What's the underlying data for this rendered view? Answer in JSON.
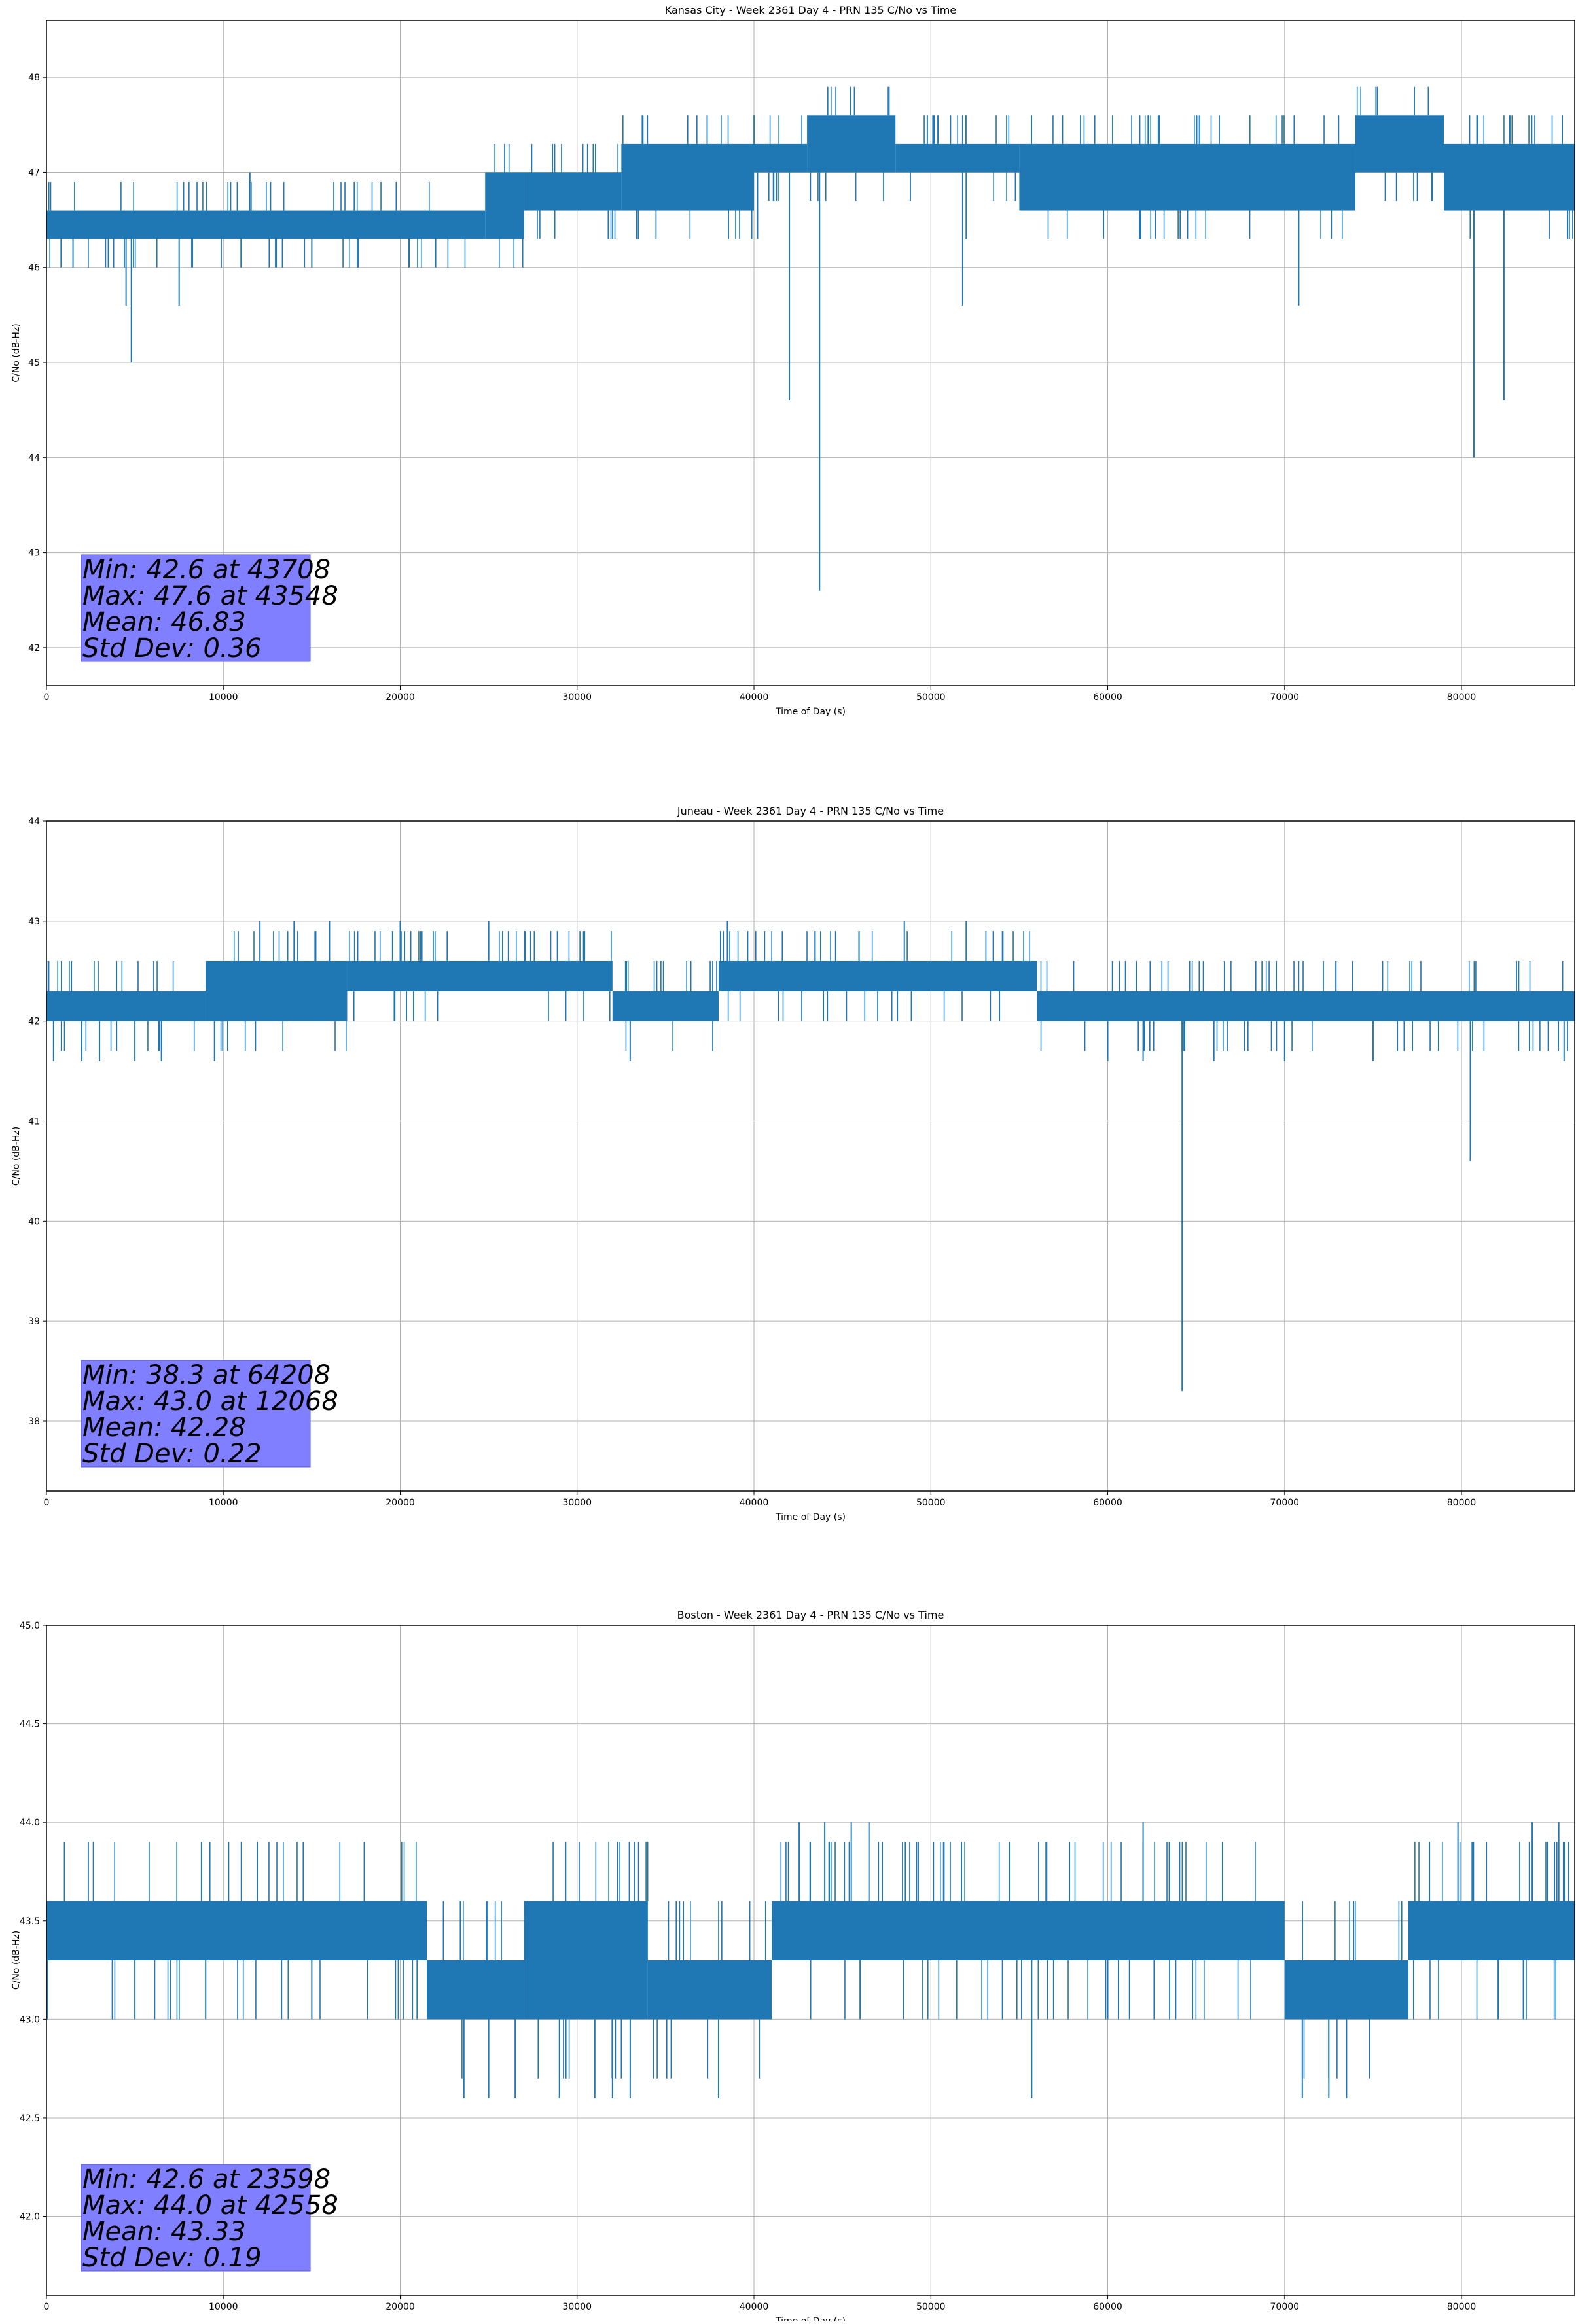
{
  "chart_data": [
    {
      "type": "line",
      "title": "Kansas City - Week 2361 Day 4 - PRN 135 C/No vs Time",
      "xlabel": "Time of Day (s)",
      "ylabel": "C/No (dB-Hz)",
      "xlim": [
        0,
        86400
      ],
      "ylim": [
        41.6,
        48.6
      ],
      "xticks": [
        0,
        10000,
        20000,
        30000,
        40000,
        50000,
        60000,
        70000,
        80000
      ],
      "yticks": [
        42,
        43,
        44,
        45,
        46,
        47,
        48
      ],
      "ytick_labels": [
        "42",
        "43",
        "44",
        "45",
        "46",
        "47",
        "48"
      ],
      "grid": true,
      "series_color": "#1f77b4",
      "segments": [
        {
          "x": [
            0,
            24800
          ],
          "low": 46.3,
          "high": 46.6
        },
        {
          "x": [
            24800,
            27000
          ],
          "low": 46.3,
          "high": 47.0
        },
        {
          "x": [
            27000,
            32500
          ],
          "low": 46.6,
          "high": 47.0
        },
        {
          "x": [
            32500,
            40000
          ],
          "low": 46.6,
          "high": 47.3
        },
        {
          "x": [
            40000,
            43000
          ],
          "low": 47.0,
          "high": 47.3
        },
        {
          "x": [
            43000,
            48000
          ],
          "low": 47.0,
          "high": 47.6
        },
        {
          "x": [
            48000,
            55000
          ],
          "low": 47.0,
          "high": 47.3
        },
        {
          "x": [
            55000,
            74000
          ],
          "low": 46.6,
          "high": 47.3
        },
        {
          "x": [
            74000,
            79000
          ],
          "low": 47.0,
          "high": 47.6
        },
        {
          "x": [
            79000,
            86400
          ],
          "low": 46.6,
          "high": 47.3
        }
      ],
      "dips": [
        {
          "x": 1500,
          "y": 46.0
        },
        {
          "x": 3500,
          "y": 46.0
        },
        {
          "x": 4500,
          "y": 45.6
        },
        {
          "x": 4800,
          "y": 45.0
        },
        {
          "x": 7500,
          "y": 45.6
        },
        {
          "x": 11000,
          "y": 46.0
        },
        {
          "x": 15000,
          "y": 46.0
        },
        {
          "x": 20500,
          "y": 46.0
        },
        {
          "x": 22000,
          "y": 46.0
        },
        {
          "x": 40200,
          "y": 46.3
        },
        {
          "x": 42000,
          "y": 44.6
        },
        {
          "x": 43708,
          "y": 42.6
        },
        {
          "x": 51800,
          "y": 45.6
        },
        {
          "x": 52000,
          "y": 46.3
        },
        {
          "x": 70800,
          "y": 45.6
        },
        {
          "x": 80700,
          "y": 44.0
        },
        {
          "x": 82400,
          "y": 44.6
        },
        {
          "x": 86000,
          "y": 46.3
        }
      ],
      "spikes": [
        {
          "x": 11500,
          "y": 47.0
        },
        {
          "x": 49800,
          "y": 47.6
        },
        {
          "x": 50400,
          "y": 47.6
        },
        {
          "x": 75000,
          "y": 47.6
        },
        {
          "x": 78000,
          "y": 47.6
        }
      ],
      "stats": {
        "line1": "Min: 42.6 at 43708",
        "line2": "Max: 47.6 at 43548",
        "line3": "Mean: 46.83",
        "line4": "Std Dev: 0.36"
      }
    },
    {
      "type": "line",
      "title": "Juneau - Week 2361 Day 4 - PRN 135 C/No vs Time",
      "xlabel": "Time of Day (s)",
      "ylabel": "C/No (dB-Hz)",
      "xlim": [
        0,
        86400
      ],
      "ylim": [
        37.3,
        44.0
      ],
      "xticks": [
        0,
        10000,
        20000,
        30000,
        40000,
        50000,
        60000,
        70000,
        80000
      ],
      "yticks": [
        38,
        39,
        40,
        41,
        42,
        43,
        44
      ],
      "ytick_labels": [
        "38",
        "39",
        "40",
        "41",
        "42",
        "43",
        "44"
      ],
      "grid": true,
      "series_color": "#1f77b4",
      "segments": [
        {
          "x": [
            0,
            9000
          ],
          "low": 42.0,
          "high": 42.3
        },
        {
          "x": [
            9000,
            17000
          ],
          "low": 42.0,
          "high": 42.6
        },
        {
          "x": [
            17000,
            32000
          ],
          "low": 42.3,
          "high": 42.6
        },
        {
          "x": [
            32000,
            38000
          ],
          "low": 42.0,
          "high": 42.3
        },
        {
          "x": [
            38000,
            56000
          ],
          "low": 42.3,
          "high": 42.6
        },
        {
          "x": [
            56000,
            86400
          ],
          "low": 42.0,
          "high": 42.3
        }
      ],
      "dips": [
        {
          "x": 400,
          "y": 41.6
        },
        {
          "x": 2000,
          "y": 41.6
        },
        {
          "x": 3000,
          "y": 41.6
        },
        {
          "x": 5000,
          "y": 41.6
        },
        {
          "x": 6500,
          "y": 41.6
        },
        {
          "x": 9500,
          "y": 41.6
        },
        {
          "x": 33000,
          "y": 41.6
        },
        {
          "x": 60000,
          "y": 41.6
        },
        {
          "x": 62000,
          "y": 41.6
        },
        {
          "x": 64208,
          "y": 38.3
        },
        {
          "x": 66000,
          "y": 41.6
        },
        {
          "x": 70000,
          "y": 41.6
        },
        {
          "x": 75000,
          "y": 41.6
        },
        {
          "x": 80500,
          "y": 40.6
        },
        {
          "x": 85800,
          "y": 41.6
        }
      ],
      "spikes": [
        {
          "x": 12068,
          "y": 43.0
        },
        {
          "x": 14000,
          "y": 43.0
        },
        {
          "x": 16000,
          "y": 43.0
        },
        {
          "x": 20000,
          "y": 43.0
        },
        {
          "x": 25000,
          "y": 43.0
        },
        {
          "x": 38500,
          "y": 43.0
        },
        {
          "x": 48500,
          "y": 43.0
        },
        {
          "x": 52000,
          "y": 43.0
        }
      ],
      "stats": {
        "line1": "Min: 38.3 at 64208",
        "line2": "Max: 43.0 at 12068",
        "line3": "Mean: 42.28",
        "line4": "Std Dev: 0.22"
      }
    },
    {
      "type": "line",
      "title": "Boston - Week 2361 Day 4 - PRN 135 C/No vs Time",
      "xlabel": "Time of Day (s)",
      "ylabel": "C/No (dB-Hz)",
      "xlim": [
        0,
        86400
      ],
      "ylim": [
        41.6,
        45.0
      ],
      "xticks": [
        0,
        10000,
        20000,
        30000,
        40000,
        50000,
        60000,
        70000,
        80000
      ],
      "yticks": [
        42.0,
        42.5,
        43.0,
        43.5,
        44.0,
        44.5,
        45.0
      ],
      "ytick_labels": [
        "42.0",
        "42.5",
        "43.0",
        "43.5",
        "44.0",
        "44.5",
        "45.0"
      ],
      "grid": true,
      "series_color": "#1f77b4",
      "segments": [
        {
          "x": [
            0,
            21500
          ],
          "low": 43.3,
          "high": 43.6
        },
        {
          "x": [
            21500,
            27000
          ],
          "low": 43.0,
          "high": 43.3
        },
        {
          "x": [
            27000,
            34000
          ],
          "low": 43.0,
          "high": 43.6
        },
        {
          "x": [
            34000,
            41000
          ],
          "low": 43.0,
          "high": 43.3
        },
        {
          "x": [
            41000,
            70000
          ],
          "low": 43.3,
          "high": 43.6
        },
        {
          "x": [
            70000,
            77000
          ],
          "low": 43.0,
          "high": 43.3
        },
        {
          "x": [
            77000,
            86400
          ],
          "low": 43.3,
          "high": 43.6
        }
      ],
      "dips": [
        {
          "x": 23598,
          "y": 42.6
        },
        {
          "x": 25000,
          "y": 42.6
        },
        {
          "x": 26500,
          "y": 42.6
        },
        {
          "x": 29000,
          "y": 42.6
        },
        {
          "x": 31000,
          "y": 42.6
        },
        {
          "x": 32000,
          "y": 42.6
        },
        {
          "x": 33000,
          "y": 42.6
        },
        {
          "x": 38000,
          "y": 42.6
        },
        {
          "x": 55700,
          "y": 42.6
        },
        {
          "x": 71000,
          "y": 42.6
        },
        {
          "x": 72500,
          "y": 42.6
        },
        {
          "x": 73500,
          "y": 42.6
        },
        {
          "x": 5000,
          "y": 43.0
        },
        {
          "x": 9000,
          "y": 43.0
        },
        {
          "x": 15000,
          "y": 43.0
        },
        {
          "x": 46000,
          "y": 43.0
        },
        {
          "x": 60000,
          "y": 43.0
        },
        {
          "x": 83500,
          "y": 43.0
        }
      ],
      "spikes": [
        {
          "x": 42558,
          "y": 44.0
        },
        {
          "x": 44000,
          "y": 44.0
        },
        {
          "x": 45500,
          "y": 44.0
        },
        {
          "x": 46500,
          "y": 44.0
        },
        {
          "x": 62000,
          "y": 44.0
        },
        {
          "x": 79800,
          "y": 44.0
        },
        {
          "x": 84000,
          "y": 44.0
        },
        {
          "x": 85500,
          "y": 44.0
        }
      ],
      "stats": {
        "line1": "Min: 42.6 at 23598",
        "line2": "Max: 44.0 at 42558",
        "line3": "Mean: 43.33",
        "line4": "Std Dev: 0.19"
      }
    }
  ]
}
